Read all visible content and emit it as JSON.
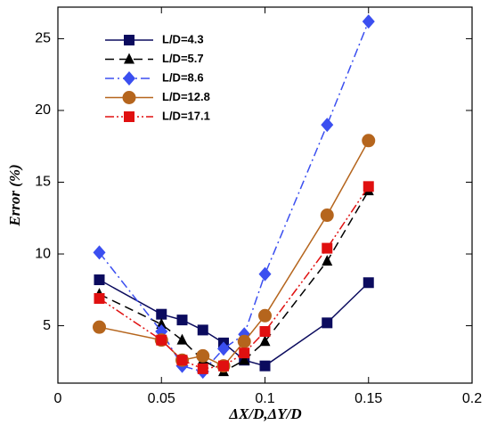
{
  "chart_data": {
    "type": "line",
    "x_label": "ΔX/D,ΔY/D",
    "y_label": "Error (%)",
    "x": [
      0.02,
      0.05,
      0.06,
      0.07,
      0.08,
      0.09,
      0.1,
      0.13,
      0.15
    ],
    "xlim": [
      0,
      0.2
    ],
    "xticks": [
      0,
      0.05,
      0.1,
      0.15,
      0.2
    ],
    "ylim": [
      1,
      27.2
    ],
    "yticks": [
      5,
      10,
      15,
      20,
      25
    ],
    "series": [
      {
        "name": "L/D=4.3",
        "color": "#0b0b5e",
        "marker": "square",
        "dash": "solid",
        "values": [
          8.2,
          5.8,
          5.4,
          4.7,
          3.8,
          2.6,
          2.2,
          5.2,
          8.0
        ]
      },
      {
        "name": "L/D=5.7",
        "color": "#000000",
        "marker": "triangle",
        "dash": "dashed",
        "values": [
          7.2,
          5.1,
          4.0,
          2.6,
          1.8,
          2.6,
          3.9,
          9.5,
          14.4
        ]
      },
      {
        "name": "L/D=8.6",
        "color": "#3b4ff0",
        "marker": "diamond",
        "dash": "dashdot",
        "values": [
          10.1,
          4.6,
          2.2,
          1.8,
          3.4,
          4.4,
          8.6,
          19.0,
          26.2
        ]
      },
      {
        "name": "L/D=12.8",
        "color": "#b5651d",
        "marker": "circle",
        "dash": "solid",
        "values": [
          4.9,
          4.0,
          2.6,
          2.9,
          2.2,
          3.9,
          5.7,
          12.7,
          17.9
        ]
      },
      {
        "name": "L/D=17.1",
        "color": "#e01010",
        "marker": "square",
        "dash": "dashdotdot",
        "values": [
          6.9,
          4.0,
          2.6,
          2.0,
          2.2,
          3.1,
          4.6,
          10.4,
          14.7
        ]
      }
    ]
  }
}
